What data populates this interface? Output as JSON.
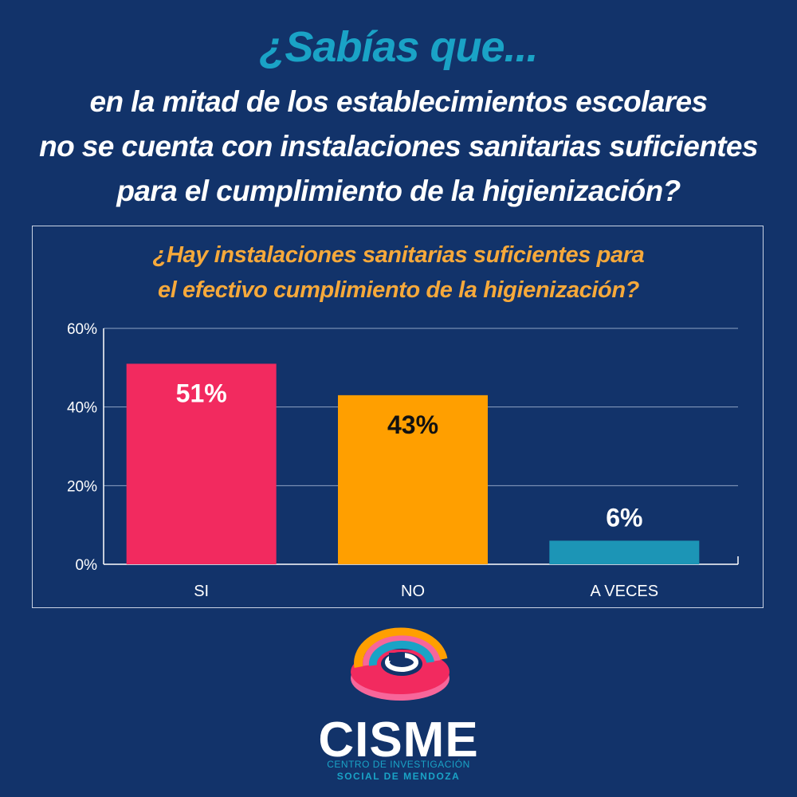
{
  "header": {
    "kicker": "¿Sabías que...",
    "lines": [
      "en la mitad de los establecimientos escolares",
      "no se cuenta con instalaciones sanitarias suficientes",
      "para el cumplimiento de la higienización?"
    ]
  },
  "chart_data": {
    "type": "bar",
    "title_lines": [
      "¿Hay instalaciones sanitarias suficientes para",
      "el efectivo cumplimiento de la higienización?"
    ],
    "categories": [
      "SI",
      "NO",
      "A VECES"
    ],
    "values": [
      51,
      43,
      6
    ],
    "value_labels": [
      "51%",
      "43%",
      "6%"
    ],
    "bar_colors": [
      "#f22a5f",
      "#ff9f00",
      "#1c95b6"
    ],
    "value_label_colors": [
      "#ffffff",
      "#111111",
      "#ffffff"
    ],
    "ylim": [
      0,
      60
    ],
    "yticks": [
      0,
      20,
      40,
      60
    ],
    "ytick_labels": [
      "0%",
      "20%",
      "40%",
      "60%"
    ],
    "grid": true,
    "xlabel": "",
    "ylabel": ""
  },
  "brand": {
    "name": "CISME",
    "tagline_1": "CENTRO DE INVESTIGACIÓN",
    "tagline_2": "SOCIAL DE MENDOZA"
  },
  "colors": {
    "background": "#12336a",
    "accent_cyan": "#1aa3c6",
    "accent_orange": "#f6a93b",
    "text": "#ffffff"
  }
}
